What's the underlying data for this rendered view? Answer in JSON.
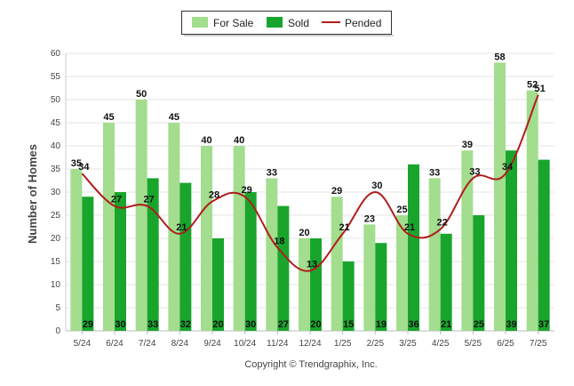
{
  "chart_data": {
    "type": "bar",
    "categories": [
      "5/24",
      "6/24",
      "7/24",
      "8/24",
      "9/24",
      "10/24",
      "11/24",
      "12/24",
      "1/25",
      "2/25",
      "3/25",
      "4/25",
      "5/25",
      "6/25",
      "7/25"
    ],
    "series": [
      {
        "name": "For Sale",
        "type": "bar",
        "color": "#a3dd8e",
        "values": [
          35,
          45,
          50,
          45,
          40,
          40,
          33,
          20,
          29,
          23,
          25,
          33,
          39,
          58,
          52
        ]
      },
      {
        "name": "Sold",
        "type": "bar",
        "color": "#19a52c",
        "values": [
          29,
          30,
          33,
          32,
          20,
          30,
          27,
          20,
          15,
          19,
          36,
          21,
          25,
          39,
          37
        ]
      },
      {
        "name": "Pended",
        "type": "line",
        "color": "#b01c1c",
        "values": [
          34,
          27,
          27,
          21,
          28,
          29,
          18,
          13,
          21,
          30,
          21,
          22,
          33,
          34,
          51
        ]
      }
    ],
    "ylabel": "Number of Homes",
    "xlabel": "",
    "ylim": [
      0,
      60
    ],
    "yticks": [
      0,
      5,
      10,
      15,
      20,
      25,
      30,
      35,
      40,
      45,
      50,
      55,
      60
    ],
    "grid": true,
    "legend_position": "top-center",
    "data_labels": true
  },
  "footer": {
    "copyright": "Copyright © Trendgraphix, Inc."
  }
}
